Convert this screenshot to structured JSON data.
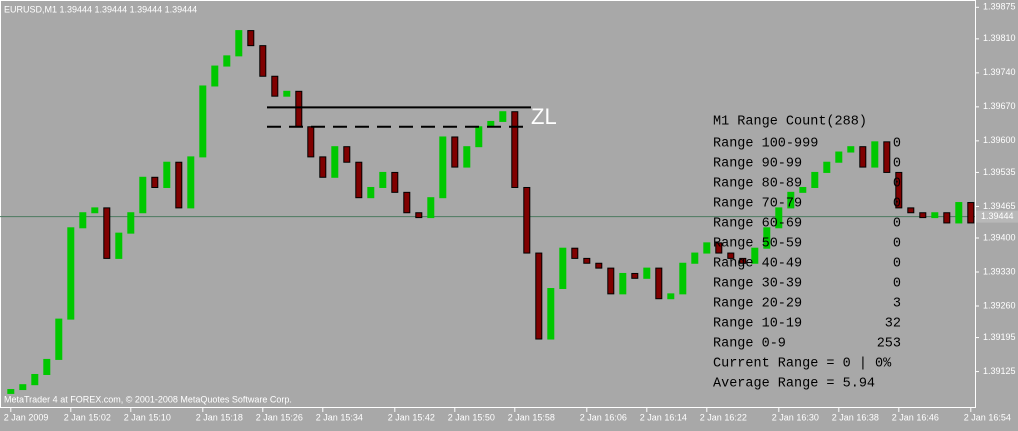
{
  "header": "EURUSD,M1  1.39444 1.39444 1.39444 1.39444",
  "footer": "MetaTrader 4 at FOREX.com, © 2001-2008 MetaQuotes Software Corp.",
  "chart_data": {
    "type": "candlestick",
    "up_color": "#00c800",
    "down_color": "#800000",
    "open": [
      1.3908,
      1.39088,
      1.39098,
      1.39119,
      1.3915,
      1.39233,
      1.39421,
      1.39452,
      1.39462,
      1.39358,
      1.3941,
      1.39452,
      1.39525,
      1.39504,
      1.39556,
      1.39462,
      1.39567,
      1.39713,
      1.39754,
      1.39775,
      1.39827,
      1.39796,
      1.39733,
      1.39692,
      1.39702,
      1.39629,
      1.39567,
      1.39525,
      1.39588,
      1.39556,
      1.39483,
      1.39504,
      1.39535,
      1.39494,
      1.39452,
      1.39442,
      1.39483,
      1.39608,
      1.39546,
      1.39588,
      1.39629,
      1.3964,
      1.3966,
      1.39504,
      1.39369,
      1.39192,
      1.39296,
      1.39379,
      1.39358,
      1.39348,
      1.39338,
      1.39285,
      1.39327,
      1.39317,
      1.39338,
      1.39275,
      1.39285,
      1.39348,
      1.39369,
      1.3939,
      1.39369,
      1.39358,
      1.39348,
      1.39379,
      1.39421,
      1.39462,
      1.39494,
      1.39504,
      1.39535,
      1.39556,
      1.39577,
      1.39588,
      1.39546,
      1.39598,
      1.39535,
      1.39462,
      1.39452,
      1.39442,
      1.39452,
      1.39431,
      1.39473
    ],
    "close": [
      1.39088,
      1.39098,
      1.39119,
      1.3915,
      1.39233,
      1.39421,
      1.39452,
      1.39462,
      1.39358,
      1.3941,
      1.39452,
      1.39525,
      1.39504,
      1.39556,
      1.39462,
      1.39567,
      1.39713,
      1.39754,
      1.39775,
      1.39827,
      1.39796,
      1.39733,
      1.39692,
      1.39702,
      1.39629,
      1.39567,
      1.39525,
      1.39588,
      1.39556,
      1.39483,
      1.39504,
      1.39535,
      1.39494,
      1.39452,
      1.39442,
      1.39483,
      1.39608,
      1.39546,
      1.39588,
      1.39629,
      1.3964,
      1.3966,
      1.39504,
      1.39369,
      1.39192,
      1.39296,
      1.39379,
      1.39358,
      1.39348,
      1.39338,
      1.39285,
      1.39327,
      1.39317,
      1.39338,
      1.39275,
      1.39285,
      1.39348,
      1.39369,
      1.3939,
      1.39369,
      1.39358,
      1.39348,
      1.39379,
      1.39421,
      1.39462,
      1.39494,
      1.39504,
      1.39535,
      1.39556,
      1.39577,
      1.39588,
      1.39546,
      1.39598,
      1.39535,
      1.39462,
      1.39452,
      1.39442,
      1.39452,
      1.39431,
      1.39473,
      1.39431
    ],
    "xlim": [
      -0.9,
      80.35
    ],
    "ylim": [
      1.3905,
      1.3989
    ],
    "yticks": [
      1.39875,
      {
        "value": 1.3981,
        "label": "1.39810"
      },
      {
        "value": 1.3974,
        "label": "1.39740"
      },
      {
        "value": 1.3967,
        "label": "1.39670"
      },
      {
        "value": 1.396,
        "label": "1.39600"
      },
      1.39535,
      1.39465,
      {
        "value": 1.394,
        "label": "1.39400"
      },
      {
        "value": 1.3933,
        "label": "1.39330"
      },
      {
        "value": 1.3926,
        "label": "1.39260"
      },
      1.39195,
      1.39125
    ],
    "xticks": [
      {
        "value": 0,
        "label": "2 Jan 2009"
      },
      {
        "value": 5,
        "label": "2 Jan 15:02"
      },
      {
        "value": 10,
        "label": "2 Jan 15:10"
      },
      {
        "value": 16,
        "label": "2 Jan 15:18"
      },
      {
        "value": 21,
        "label": "2 Jan 15:26"
      },
      {
        "value": 26,
        "label": "2 Jan 15:34"
      },
      {
        "value": 32,
        "label": "2 Jan 15:42"
      },
      {
        "value": 37,
        "label": "2 Jan 15:50"
      },
      {
        "value": 42,
        "label": "2 Jan 15:58"
      },
      {
        "value": 48,
        "label": "2 Jan 16:06"
      },
      {
        "value": 53,
        "label": "2 Jan 16:14"
      },
      {
        "value": 58,
        "label": "2 Jan 16:22"
      },
      {
        "value": 64,
        "label": "2 Jan 16:30"
      },
      {
        "value": 69,
        "label": "2 Jan 16:38"
      },
      {
        "value": 74,
        "label": "2 Jan 16:46"
      },
      {
        "value": 80,
        "label": "2 Jan 16:54"
      }
    ],
    "current_price": 1.39444,
    "levels": [
      {
        "name": "ZL",
        "value": 1.39669,
        "style": "solid"
      },
      {
        "value": 1.39629,
        "style": "dashed"
      }
    ]
  },
  "panel": {
    "title": "M1 Range Count(288)",
    "rows": [
      [
        "Range 100-999",
        0
      ],
      [
        "Range 90-99",
        0
      ],
      [
        "Range 80-89",
        0
      ],
      [
        "Range 70-79",
        0
      ],
      [
        "Range 60-69",
        0
      ],
      [
        "Range 50-59",
        0
      ],
      [
        "Range 40-49",
        0
      ],
      [
        "Range 30-39",
        0
      ],
      [
        "Range 20-29",
        3
      ],
      [
        "Range 10-19",
        32
      ],
      [
        "Range 0-9",
        253
      ]
    ],
    "current": "Current Range = 0 | 0%",
    "average": "Average Range = 5.94"
  }
}
